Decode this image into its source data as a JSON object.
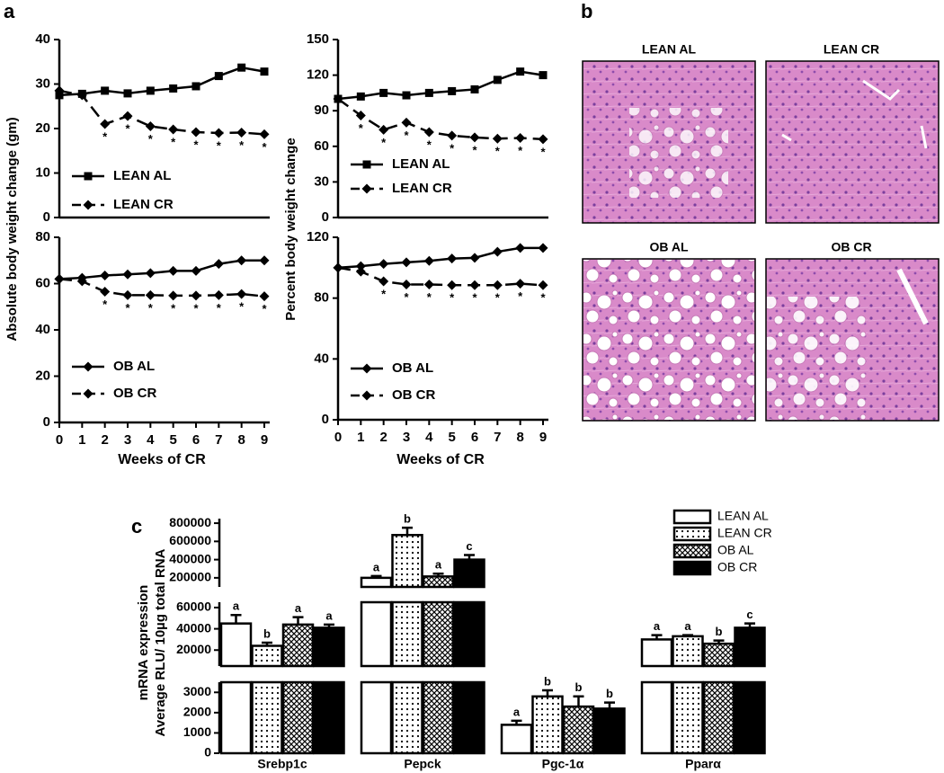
{
  "panel_labels": [
    "a",
    "b",
    "c"
  ],
  "histology": {
    "titles": [
      "LEAN AL",
      "LEAN CR",
      "OB AL",
      "OB CR"
    ]
  },
  "chart_data": [
    {
      "type": "line",
      "ylabel": "Absolute body weight change (gm)",
      "x": [
        0,
        1,
        2,
        3,
        4,
        5,
        6,
        7,
        8,
        9
      ],
      "xlim": [
        0,
        9
      ],
      "ylim": [
        0,
        40
      ],
      "yticks": [
        0,
        10,
        20,
        30,
        40
      ],
      "series": [
        {
          "name": "LEAN AL",
          "color": "#000000",
          "marker": "square",
          "dash": false,
          "values": [
            27.5,
            27.8,
            28.5,
            27.9,
            28.5,
            29,
            29.5,
            31.8,
            33.7,
            32.8
          ]
        },
        {
          "name": "LEAN CR",
          "color": "#000000",
          "marker": "diamond",
          "dash": true,
          "values": [
            28.5,
            27.5,
            21,
            22.8,
            20.5,
            19.8,
            19.2,
            19,
            19.1,
            18.7
          ]
        }
      ],
      "significance": {
        "label": "*",
        "x": [
          2,
          3,
          4,
          5,
          6,
          7,
          8,
          9
        ]
      }
    },
    {
      "type": "line",
      "xlabel": "Weeks of CR",
      "x": [
        0,
        1,
        2,
        3,
        4,
        5,
        6,
        7,
        8,
        9
      ],
      "xlim": [
        0,
        9
      ],
      "xticks": [
        0,
        1,
        2,
        3,
        4,
        5,
        6,
        7,
        8,
        9
      ],
      "ylim": [
        0,
        80
      ],
      "yticks": [
        0,
        20,
        40,
        60,
        80
      ],
      "series": [
        {
          "name": "OB AL",
          "color": "#000000",
          "marker": "diamond",
          "dash": false,
          "values": [
            62,
            62.5,
            63.5,
            64,
            64.5,
            65.5,
            65.5,
            68.5,
            70,
            70
          ]
        },
        {
          "name": "OB CR",
          "color": "#000000",
          "marker": "diamond",
          "dash": true,
          "values": [
            62,
            61,
            56.5,
            55,
            55,
            54.8,
            54.8,
            55,
            55.5,
            54.5
          ]
        }
      ],
      "significance": {
        "label": "*",
        "x": [
          2,
          3,
          4,
          5,
          6,
          7,
          8,
          9
        ]
      }
    },
    {
      "type": "line",
      "ylabel": "Percent body weight change",
      "x": [
        0,
        1,
        2,
        3,
        4,
        5,
        6,
        7,
        8,
        9
      ],
      "xlim": [
        0,
        9
      ],
      "ylim": [
        0,
        150
      ],
      "yticks": [
        0,
        30,
        60,
        90,
        120,
        150
      ],
      "series": [
        {
          "name": "LEAN AL",
          "color": "#000000",
          "marker": "square",
          "dash": false,
          "values": [
            100,
            102,
            105,
            103,
            105,
            106.5,
            108,
            116,
            123,
            120
          ]
        },
        {
          "name": "LEAN CR",
          "color": "#000000",
          "marker": "diamond",
          "dash": true,
          "values": [
            100,
            86,
            74,
            80,
            72,
            69,
            67.5,
            66.5,
            67,
            66
          ]
        }
      ],
      "significance": {
        "label": "*",
        "x": [
          1,
          2,
          3,
          4,
          5,
          6,
          7,
          8,
          9
        ]
      }
    },
    {
      "type": "line",
      "xlabel": "Weeks of CR",
      "x": [
        0,
        1,
        2,
        3,
        4,
        5,
        6,
        7,
        8,
        9
      ],
      "xlim": [
        0,
        9
      ],
      "xticks": [
        0,
        1,
        2,
        3,
        4,
        5,
        6,
        7,
        8,
        9
      ],
      "ylim": [
        0,
        120
      ],
      "yticks": [
        0,
        40,
        80,
        120
      ],
      "series": [
        {
          "name": "OB AL",
          "color": "#000000",
          "marker": "diamond",
          "dash": false,
          "values": [
            100,
            101,
            102.5,
            103.5,
            104.5,
            106,
            106.5,
            110.5,
            113,
            113
          ]
        },
        {
          "name": "OB CR",
          "color": "#000000",
          "marker": "diamond",
          "dash": true,
          "values": [
            100,
            97.5,
            91,
            89,
            89,
            88.5,
            88.5,
            88.5,
            89.5,
            88.5
          ]
        }
      ],
      "significance": {
        "label": "*",
        "x": [
          2,
          3,
          4,
          5,
          6,
          7,
          8,
          9
        ]
      }
    },
    {
      "type": "bar",
      "ylabel": [
        "mRNA expression",
        "Average RLU/ 10µg total RNA"
      ],
      "categories": [
        "Srebp1c",
        "Pepck",
        "Pgc-1α",
        "Pparα"
      ],
      "axis_segments": [
        {
          "ylim": [
            0,
            3500
          ],
          "yticks": [
            0,
            1000,
            2000,
            3000
          ]
        },
        {
          "ylim": [
            5000,
            65000
          ],
          "yticks": [
            20000,
            40000,
            60000
          ]
        },
        {
          "ylim": [
            100000,
            850000
          ],
          "yticks": [
            200000,
            400000,
            600000,
            800000
          ]
        }
      ],
      "series": [
        {
          "name": "LEAN AL",
          "color": "#ffffff",
          "values": [
            45000,
            200000,
            1400,
            30000
          ],
          "errors": [
            8000,
            20000,
            200,
            4000
          ],
          "letters": [
            "a",
            "a",
            "a",
            "a"
          ]
        },
        {
          "name": "LEAN CR",
          "color": "#ffffff",
          "pattern": "dots",
          "values": [
            24000,
            670000,
            2800,
            33000
          ],
          "errors": [
            3000,
            80000,
            300,
            1000
          ],
          "letters": [
            "b",
            "b",
            "b",
            "a"
          ]
        },
        {
          "name": "OB AL",
          "color": "#ffffff",
          "pattern": "crosshatch",
          "values": [
            44000,
            215000,
            2300,
            26000
          ],
          "errors": [
            7000,
            30000,
            500,
            3000
          ],
          "letters": [
            "a",
            "a",
            "b",
            "b"
          ]
        },
        {
          "name": "OB CR",
          "color": "#000000",
          "values": [
            41000,
            400000,
            2200,
            41000
          ],
          "errors": [
            3000,
            50000,
            300,
            4000
          ],
          "letters": [
            "a",
            "c",
            "b",
            "c"
          ]
        }
      ]
    }
  ]
}
